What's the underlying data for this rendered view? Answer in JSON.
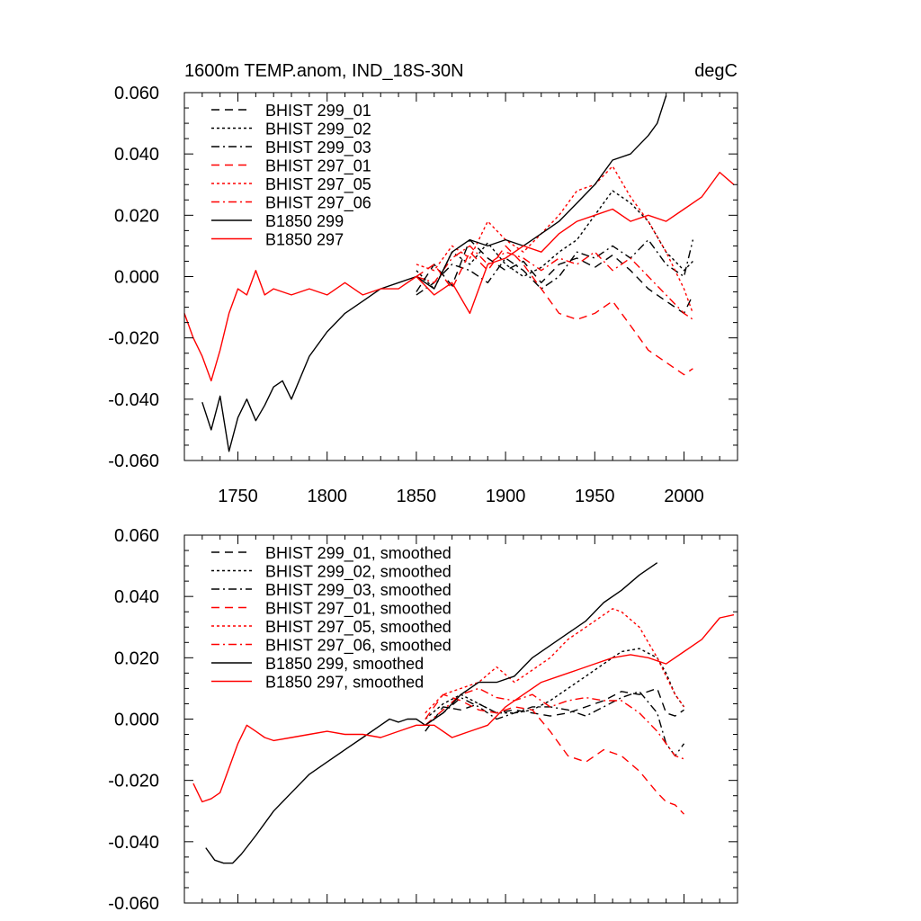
{
  "chart_data": [
    {
      "type": "line",
      "title": "1600m TEMP.anom, IND_18S-30N",
      "units": "degC",
      "xlabel": "",
      "ylabel": "",
      "xlim": [
        1720,
        2030
      ],
      "ylim": [
        -0.06,
        0.06
      ],
      "xticks": [
        1750,
        1800,
        1850,
        1900,
        1950,
        2000
      ],
      "yticks": [
        -0.06,
        -0.04,
        -0.02,
        0.0,
        0.02,
        0.04,
        0.06
      ],
      "ytick_labels": [
        "-0.060",
        "-0.040",
        "-0.020",
        "0.000",
        "0.020",
        "0.040",
        "0.060"
      ],
      "legend_position": "top-left",
      "series": [
        {
          "name": "BHIST 299_01",
          "color": "#000000",
          "dash": "long-dash",
          "x": [
            1850,
            1860,
            1870,
            1880,
            1890,
            1900,
            1910,
            1920,
            1930,
            1940,
            1950,
            1960,
            1970,
            1980,
            1990,
            2000,
            2005
          ],
          "y": [
            -0.005,
            0.004,
            -0.003,
            0.012,
            0.006,
            0.002,
            0.005,
            -0.002,
            0.004,
            0.006,
            0.003,
            0.007,
            0.002,
            -0.004,
            -0.008,
            -0.012,
            -0.006
          ]
        },
        {
          "name": "BHIST 299_02",
          "color": "#000000",
          "dash": "short-dash",
          "x": [
            1850,
            1860,
            1870,
            1880,
            1890,
            1900,
            1910,
            1920,
            1930,
            1940,
            1950,
            1960,
            1970,
            1980,
            1990,
            2000,
            2005
          ],
          "y": [
            0.002,
            -0.004,
            0.008,
            0.004,
            0.011,
            0.004,
            0.0,
            0.003,
            0.008,
            0.012,
            0.02,
            0.028,
            0.024,
            0.018,
            0.008,
            0.002,
            0.005
          ]
        },
        {
          "name": "BHIST 299_03",
          "color": "#000000",
          "dash": "dash-dot",
          "x": [
            1850,
            1860,
            1870,
            1880,
            1890,
            1900,
            1910,
            1920,
            1930,
            1940,
            1950,
            1960,
            1970,
            1980,
            1990,
            2000,
            2005
          ],
          "y": [
            -0.006,
            -0.002,
            0.004,
            0.002,
            -0.002,
            0.006,
            0.002,
            -0.004,
            0.0,
            0.008,
            0.006,
            0.01,
            0.006,
            0.012,
            0.004,
            0.0,
            0.012
          ]
        },
        {
          "name": "BHIST 297_01",
          "color": "#ff0000",
          "dash": "long-dash",
          "x": [
            1850,
            1860,
            1870,
            1880,
            1890,
            1900,
            1910,
            1920,
            1930,
            1940,
            1950,
            1960,
            1970,
            1980,
            1990,
            2000,
            2005
          ],
          "y": [
            0.0,
            0.004,
            -0.004,
            0.008,
            0.002,
            0.01,
            0.004,
            -0.004,
            -0.012,
            -0.014,
            -0.012,
            -0.008,
            -0.016,
            -0.024,
            -0.028,
            -0.032,
            -0.03
          ]
        },
        {
          "name": "BHIST 297_05",
          "color": "#ff0000",
          "dash": "short-dash",
          "x": [
            1850,
            1860,
            1870,
            1880,
            1890,
            1900,
            1910,
            1920,
            1930,
            1940,
            1950,
            1960,
            1970,
            1980,
            1990,
            2000,
            2005
          ],
          "y": [
            0.004,
            0.002,
            0.01,
            0.006,
            0.018,
            0.012,
            0.008,
            0.014,
            0.02,
            0.028,
            0.03,
            0.036,
            0.026,
            0.018,
            0.008,
            -0.004,
            -0.012
          ]
        },
        {
          "name": "BHIST 297_06",
          "color": "#ff0000",
          "dash": "dash-dot",
          "x": [
            1850,
            1860,
            1870,
            1880,
            1890,
            1900,
            1910,
            1920,
            1930,
            1940,
            1950,
            1960,
            1970,
            1980,
            1990,
            2000,
            2005
          ],
          "y": [
            0.0,
            -0.002,
            0.006,
            0.01,
            0.004,
            0.008,
            0.006,
            0.002,
            0.006,
            0.004,
            0.008,
            0.002,
            0.006,
            0.0,
            -0.006,
            -0.012,
            -0.014
          ]
        },
        {
          "name": "B1850 299",
          "color": "#000000",
          "dash": "solid",
          "x": [
            1730,
            1735,
            1740,
            1745,
            1750,
            1755,
            1760,
            1765,
            1770,
            1775,
            1780,
            1790,
            1800,
            1810,
            1820,
            1830,
            1840,
            1850,
            1860,
            1870,
            1880,
            1890,
            1900,
            1910,
            1920,
            1930,
            1940,
            1950,
            1960,
            1970,
            1980,
            1985,
            1990
          ],
          "y": [
            -0.041,
            -0.05,
            -0.039,
            -0.057,
            -0.046,
            -0.04,
            -0.047,
            -0.042,
            -0.036,
            -0.034,
            -0.04,
            -0.026,
            -0.018,
            -0.012,
            -0.008,
            -0.004,
            -0.002,
            0.0,
            -0.004,
            0.008,
            0.012,
            0.01,
            0.012,
            0.01,
            0.014,
            0.018,
            0.024,
            0.03,
            0.038,
            0.04,
            0.046,
            0.05,
            0.059
          ]
        },
        {
          "name": "B1850 297",
          "color": "#ff0000",
          "dash": "solid",
          "x": [
            1720,
            1725,
            1730,
            1735,
            1740,
            1745,
            1750,
            1755,
            1760,
            1765,
            1770,
            1780,
            1790,
            1800,
            1810,
            1820,
            1830,
            1840,
            1850,
            1860,
            1870,
            1880,
            1890,
            1900,
            1910,
            1920,
            1930,
            1940,
            1950,
            1960,
            1970,
            1980,
            1990,
            2000,
            2010,
            2020,
            2028
          ],
          "y": [
            -0.012,
            -0.02,
            -0.026,
            -0.034,
            -0.024,
            -0.012,
            -0.004,
            -0.006,
            0.002,
            -0.006,
            -0.004,
            -0.006,
            -0.004,
            -0.006,
            -0.002,
            -0.006,
            -0.004,
            -0.004,
            0.0,
            -0.006,
            -0.002,
            -0.012,
            0.004,
            0.006,
            0.01,
            0.008,
            0.014,
            0.018,
            0.02,
            0.022,
            0.018,
            0.02,
            0.018,
            0.022,
            0.026,
            0.034,
            0.03
          ]
        }
      ]
    },
    {
      "type": "line",
      "title": "",
      "xlabel": "",
      "ylabel": "",
      "xlim": [
        1720,
        2030
      ],
      "ylim": [
        -0.06,
        0.06
      ],
      "xticks": [
        1750,
        1800,
        1850,
        1900,
        1950,
        2000
      ],
      "yticks": [
        -0.06,
        -0.04,
        -0.02,
        0.0,
        0.02,
        0.04,
        0.06
      ],
      "ytick_labels": [
        "-0.060",
        "-0.040",
        "-0.020",
        "0.000",
        "0.020",
        "0.040",
        "0.060"
      ],
      "legend_position": "top-left",
      "series": [
        {
          "name": "BHIST 299_01, smoothed",
          "color": "#000000",
          "dash": "long-dash",
          "x": [
            1855,
            1865,
            1875,
            1885,
            1895,
            1905,
            1915,
            1925,
            1935,
            1945,
            1955,
            1965,
            1975,
            1985,
            1990,
            1995,
            2000
          ],
          "y": [
            -0.004,
            0.004,
            0.003,
            0.005,
            0.002,
            0.003,
            0.002,
            0.001,
            0.002,
            0.004,
            0.006,
            0.009,
            0.008,
            0.01,
            0.002,
            0.001,
            0.003
          ]
        },
        {
          "name": "BHIST 299_02, smoothed",
          "color": "#000000",
          "dash": "short-dash",
          "x": [
            1855,
            1865,
            1875,
            1885,
            1895,
            1905,
            1915,
            1925,
            1935,
            1945,
            1955,
            1965,
            1975,
            1985,
            1990,
            1995,
            2000
          ],
          "y": [
            0.0,
            0.005,
            0.008,
            0.005,
            0.002,
            0.002,
            0.003,
            0.006,
            0.01,
            0.014,
            0.018,
            0.022,
            0.023,
            0.02,
            0.015,
            0.008,
            0.004
          ]
        },
        {
          "name": "BHIST 299_03, smoothed",
          "color": "#000000",
          "dash": "dash-dot",
          "x": [
            1855,
            1865,
            1875,
            1885,
            1895,
            1905,
            1915,
            1925,
            1935,
            1945,
            1955,
            1965,
            1975,
            1985,
            1990,
            1995,
            2000
          ],
          "y": [
            -0.002,
            0.002,
            0.007,
            0.004,
            0.0,
            0.002,
            0.004,
            0.004,
            0.003,
            0.001,
            0.004,
            0.007,
            0.009,
            0.002,
            -0.008,
            -0.012,
            -0.008
          ]
        },
        {
          "name": "BHIST 297_01, smoothed",
          "color": "#ff0000",
          "dash": "long-dash",
          "x": [
            1855,
            1865,
            1875,
            1885,
            1895,
            1905,
            1915,
            1925,
            1935,
            1945,
            1955,
            1965,
            1975,
            1985,
            1990,
            1995,
            2000
          ],
          "y": [
            0.0,
            0.008,
            0.006,
            0.003,
            0.002,
            0.004,
            0.003,
            -0.004,
            -0.012,
            -0.014,
            -0.01,
            -0.012,
            -0.017,
            -0.024,
            -0.027,
            -0.028,
            -0.031
          ]
        },
        {
          "name": "BHIST 297_05, smoothed",
          "color": "#ff0000",
          "dash": "short-dash",
          "x": [
            1855,
            1865,
            1875,
            1885,
            1895,
            1905,
            1915,
            1925,
            1935,
            1945,
            1955,
            1960,
            1965,
            1975,
            1985,
            1990,
            1995,
            2000
          ],
          "y": [
            0.002,
            0.008,
            0.01,
            0.012,
            0.017,
            0.012,
            0.016,
            0.02,
            0.026,
            0.03,
            0.034,
            0.036,
            0.035,
            0.03,
            0.02,
            0.014,
            0.008,
            0.004
          ]
        },
        {
          "name": "BHIST 297_06, smoothed",
          "color": "#ff0000",
          "dash": "dash-dot",
          "x": [
            1855,
            1865,
            1875,
            1885,
            1895,
            1905,
            1915,
            1925,
            1935,
            1945,
            1955,
            1965,
            1975,
            1985,
            1990,
            1995,
            2000
          ],
          "y": [
            -0.002,
            0.003,
            0.008,
            0.01,
            0.007,
            0.006,
            0.008,
            0.004,
            0.006,
            0.007,
            0.006,
            0.006,
            0.002,
            -0.004,
            -0.008,
            -0.012,
            -0.013
          ]
        },
        {
          "name": "B1850 299, smoothed",
          "color": "#000000",
          "dash": "solid",
          "x": [
            1732,
            1737,
            1742,
            1747,
            1752,
            1760,
            1770,
            1780,
            1790,
            1800,
            1810,
            1820,
            1830,
            1835,
            1840,
            1845,
            1850,
            1855,
            1865,
            1875,
            1885,
            1895,
            1905,
            1915,
            1925,
            1935,
            1945,
            1955,
            1965,
            1975,
            1985
          ],
          "y": [
            -0.042,
            -0.046,
            -0.047,
            -0.047,
            -0.044,
            -0.038,
            -0.03,
            -0.024,
            -0.018,
            -0.014,
            -0.01,
            -0.006,
            -0.002,
            0.0,
            -0.001,
            0.0,
            0.0,
            -0.002,
            0.002,
            0.008,
            0.012,
            0.012,
            0.014,
            0.02,
            0.024,
            0.028,
            0.032,
            0.038,
            0.042,
            0.047,
            0.051
          ]
        },
        {
          "name": "B1850 297, smoothed",
          "color": "#ff0000",
          "dash": "solid",
          "x": [
            1725,
            1730,
            1735,
            1740,
            1745,
            1750,
            1755,
            1760,
            1765,
            1770,
            1780,
            1790,
            1800,
            1810,
            1820,
            1830,
            1840,
            1850,
            1860,
            1870,
            1880,
            1890,
            1900,
            1910,
            1920,
            1930,
            1940,
            1950,
            1960,
            1970,
            1980,
            1990,
            2000,
            2010,
            2020,
            2028
          ],
          "y": [
            -0.021,
            -0.027,
            -0.026,
            -0.024,
            -0.016,
            -0.008,
            -0.002,
            -0.004,
            -0.006,
            -0.007,
            -0.006,
            -0.005,
            -0.004,
            -0.005,
            -0.005,
            -0.006,
            -0.004,
            -0.002,
            -0.002,
            -0.006,
            -0.004,
            -0.002,
            0.004,
            0.008,
            0.012,
            0.014,
            0.016,
            0.018,
            0.02,
            0.021,
            0.02,
            0.018,
            0.022,
            0.026,
            0.033,
            0.034
          ]
        }
      ]
    }
  ]
}
